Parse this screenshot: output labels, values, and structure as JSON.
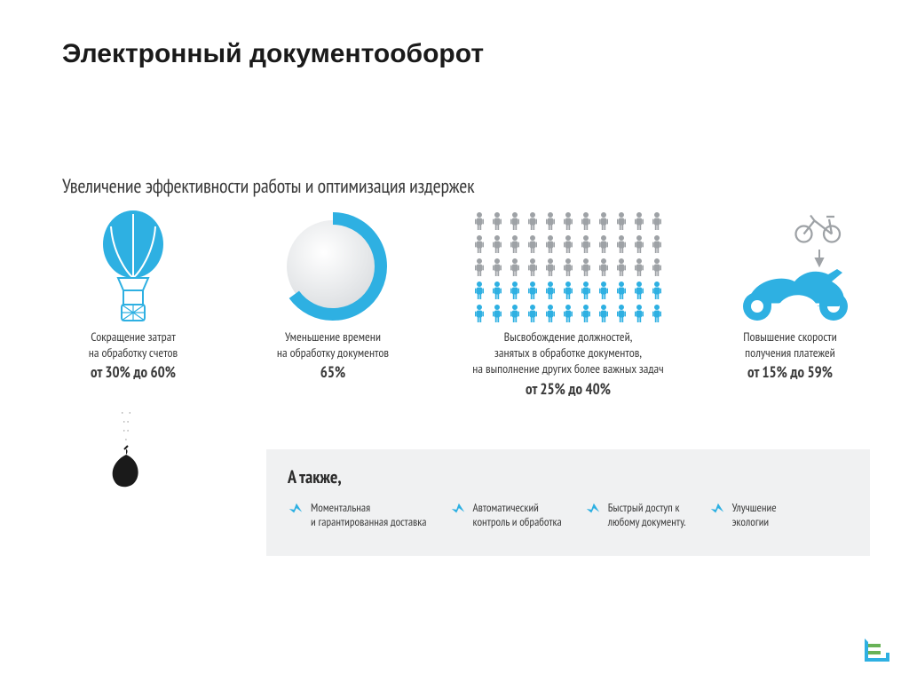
{
  "colors": {
    "accent": "#2eb0e2",
    "accent_dark": "#1a9fd4",
    "gray_light": "#b8bcc0",
    "gray_text": "#3a3a3a",
    "gray_fig": "#9ea2a6",
    "black": "#1a1a1a",
    "box_bg": "#f0f1f2",
    "green": "#68b257"
  },
  "title": "Электронный документооборот",
  "subtitle": "Увеличение эффективности работы и оптимизация издержек",
  "cards": [
    {
      "icon": "balloon",
      "lines": [
        "Сокращение затрат",
        "на обработку счетов"
      ],
      "stat": "от 30% до 60%"
    },
    {
      "icon": "donut",
      "donut_percent": 65,
      "lines": [
        "Уменьшение времени",
        "на обработку документов"
      ],
      "stat": "65%"
    },
    {
      "icon": "people",
      "people_rows": 5,
      "people_cols": 11,
      "people_colored_rows": 2,
      "lines": [
        "Высвобождение должностей,",
        "занятых в обработке документов,",
        "на выполнение других более важных задач"
      ],
      "stat": "от 25% до 40%"
    },
    {
      "icon": "bike",
      "lines": [
        "Повышение скорости",
        "получения платежей"
      ],
      "stat": "от 15% до 59%"
    }
  ],
  "also": {
    "title": "А также,",
    "items": [
      [
        "Моментальная",
        "и гарантированная доставка"
      ],
      [
        "Автоматический",
        "контроль и обработка"
      ],
      [
        "Быстрый доступ к",
        "любому документу."
      ],
      [
        "Улучшение",
        "экологии"
      ]
    ]
  }
}
